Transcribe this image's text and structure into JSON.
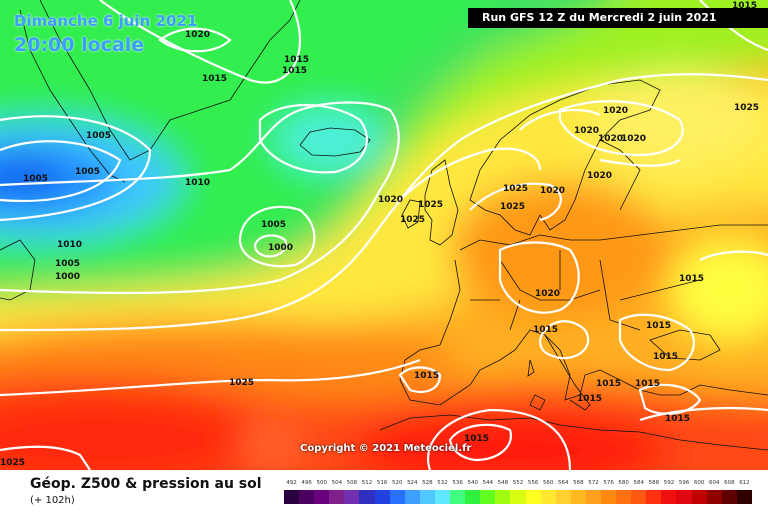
{
  "title": {
    "day_line": "Dimanche 6 juin 2021",
    "time_line": "20:00 locale"
  },
  "run_info": "Run GFS 12 Z du Mercredi 2 juin 2021",
  "copyright": "Copyright © 2021 Meteociel.fr",
  "legend": {
    "title": "Géop. Z500 & pression au sol",
    "subtitle": "(+ 102h)",
    "scale_values": [
      "492",
      "496",
      "500",
      "504",
      "508",
      "512",
      "516",
      "520",
      "524",
      "528",
      "532",
      "536",
      "540",
      "544",
      "548",
      "552",
      "556",
      "560",
      "564",
      "568",
      "572",
      "576",
      "580",
      "584",
      "588",
      "592",
      "596",
      "600",
      "604",
      "608",
      "612"
    ],
    "scale_colors": [
      "#2a0040",
      "#4b0060",
      "#6a0080",
      "#80208a",
      "#7030b0",
      "#3030c0",
      "#2040e0",
      "#2870ff",
      "#3f9fff",
      "#50c8ff",
      "#60e8ff",
      "#40ff80",
      "#30f040",
      "#60ff20",
      "#a0ff10",
      "#d8ff10",
      "#ffff20",
      "#ffe830",
      "#ffd030",
      "#ffb820",
      "#ffa020",
      "#ff8810",
      "#ff7010",
      "#ff5810",
      "#ff3010",
      "#f01010",
      "#e00810",
      "#c00000",
      "#900000",
      "#600000",
      "#300000"
    ]
  },
  "isobars": [
    {
      "value": "1015",
      "pos": "top-right"
    },
    {
      "value": "1020",
      "pos": "iceland-north"
    },
    {
      "value": "1015",
      "pos": "jan-mayen-1"
    },
    {
      "value": "1015",
      "pos": "jan-mayen-2"
    },
    {
      "value": "1015",
      "pos": "greenland-east"
    },
    {
      "value": "1005",
      "pos": "greenland-south-1"
    },
    {
      "value": "1005",
      "pos": "labrador-low"
    },
    {
      "value": "1005",
      "pos": "greenland-south-2"
    },
    {
      "value": "1010",
      "pos": "irminger"
    },
    {
      "value": "1005",
      "pos": "atlantic-low-ring"
    },
    {
      "value": "1000",
      "pos": "atlantic-low-core"
    },
    {
      "value": "1010",
      "pos": "newfoundland-1"
    },
    {
      "value": "1005",
      "pos": "newfoundland-2"
    },
    {
      "value": "1000",
      "pos": "newfoundland-3"
    },
    {
      "value": "1020",
      "pos": "scotland"
    },
    {
      "value": "1025",
      "pos": "uk-1"
    },
    {
      "value": "1025",
      "pos": "uk-2"
    },
    {
      "value": "1025",
      "pos": "north-sea-1"
    },
    {
      "value": "1025",
      "pos": "north-sea-2"
    },
    {
      "value": "1020",
      "pos": "denmark"
    },
    {
      "value": "1020",
      "pos": "norway-1"
    },
    {
      "value": "1020",
      "pos": "norway-2"
    },
    {
      "value": "1020",
      "pos": "sweden-1"
    },
    {
      "value": "1020",
      "pos": "sweden-2"
    },
    {
      "value": "1020",
      "pos": "baltic"
    },
    {
      "value": "1025",
      "pos": "russia-north"
    },
    {
      "value": "1020",
      "pos": "germany"
    },
    {
      "value": "1015",
      "pos": "ukraine"
    },
    {
      "value": "1015",
      "pos": "alps"
    },
    {
      "value": "1015",
      "pos": "balkans-1"
    },
    {
      "value": "1015",
      "pos": "balkans-2"
    },
    {
      "value": "1015",
      "pos": "iberia"
    },
    {
      "value": "1025",
      "pos": "azores"
    },
    {
      "value": "1015",
      "pos": "sardinia"
    },
    {
      "value": "1015",
      "pos": "italy-south"
    },
    {
      "value": "1015",
      "pos": "greece"
    },
    {
      "value": "1015",
      "pos": "turkey"
    },
    {
      "value": "1015",
      "pos": "north-africa"
    },
    {
      "value": "1025",
      "pos": "bottom-left"
    }
  ]
}
